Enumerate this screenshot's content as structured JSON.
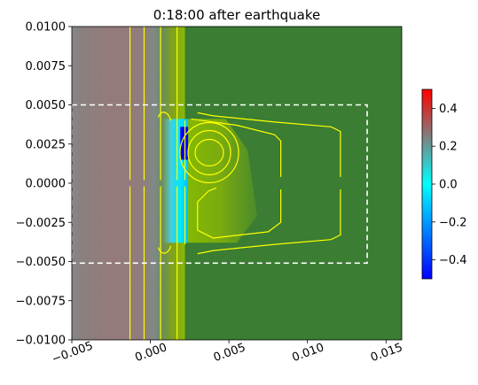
{
  "chart_data": {
    "type": "heatmap",
    "title": "0:18:00 after earthquake",
    "xlim": [
      -0.005,
      0.016
    ],
    "ylim": [
      -0.01,
      0.01
    ],
    "x_ticks": [
      -0.005,
      0.0,
      0.005,
      0.01,
      0.015
    ],
    "x_tick_labels": [
      "−0.005",
      "0.000",
      "0.005",
      "0.010",
      "0.015"
    ],
    "y_ticks": [
      0.01,
      0.0075,
      0.005,
      0.0025,
      0.0,
      -0.0025,
      -0.005,
      -0.0075,
      -0.01
    ],
    "y_tick_labels": [
      "0.0100",
      "0.0075",
      "0.0050",
      "0.0025",
      "0.0000",
      "−0.0025",
      "−0.0050",
      "−0.0075",
      "−0.0100"
    ],
    "colorbar": {
      "range": [
        -0.5,
        0.5
      ],
      "ticks": [
        0.4,
        0.2,
        0.0,
        -0.2,
        -0.4
      ],
      "tick_labels": [
        "0.4",
        "0.2",
        "0.0",
        "−0.2",
        "−0.4"
      ],
      "colors": [
        "#0000ff",
        "#00ffff",
        "#808080",
        "#ff0000"
      ]
    },
    "land_color": "#3a7d33",
    "region_box": {
      "x0": -0.005,
      "x1": 0.0138,
      "y0": -0.0051,
      "y1": 0.005
    },
    "contour_color": "#ffff00",
    "box_color": "#ffffff"
  }
}
